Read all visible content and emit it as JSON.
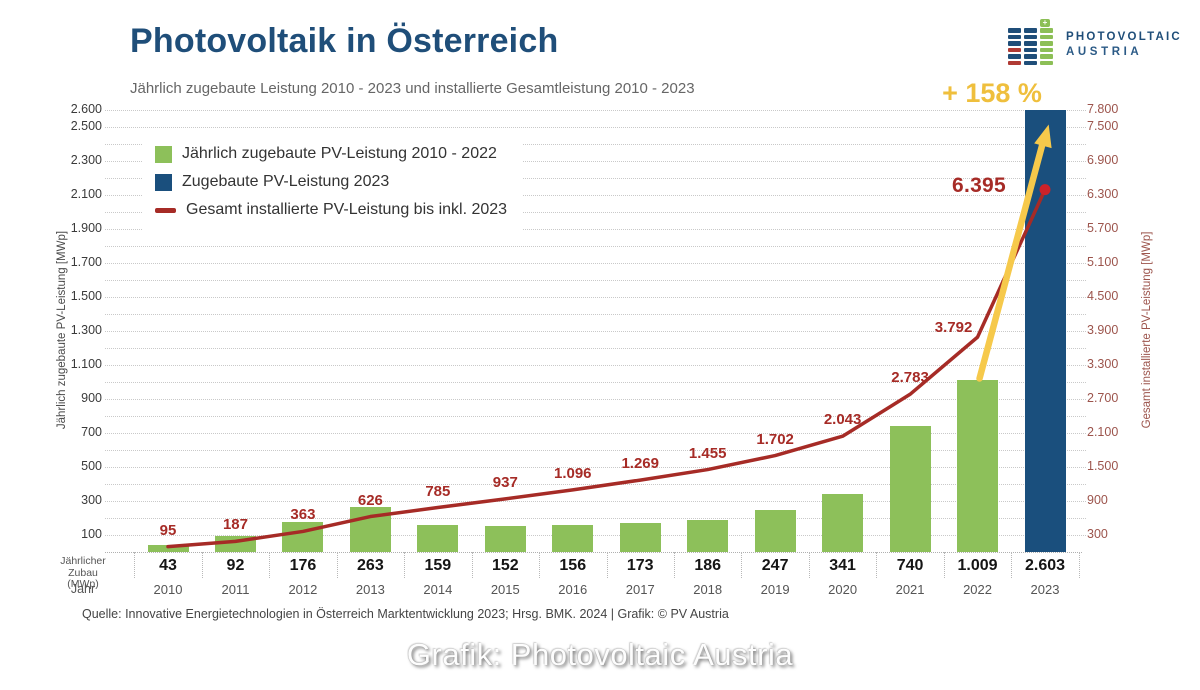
{
  "header": {
    "title": "Photovoltaik in Österreich",
    "subtitle": "Jährlich zugebaute Leistung 2010 - 2023 und installierte Gesamtleistung 2010 - 2023"
  },
  "logo": {
    "line1": "PHOTOVOLTAIC",
    "line2": "AUSTRIA"
  },
  "legend": [
    {
      "label": "Jährlich zugebaute PV-Leistung 2010 - 2022",
      "swatch": "green-square",
      "color": "#8DC05A"
    },
    {
      "label": "Zugebaute PV-Leistung 2023",
      "swatch": "blue-square",
      "color": "#1A4F7D"
    },
    {
      "label": "Gesamt installierte PV-Leistung bis inkl. 2023",
      "swatch": "red-dash",
      "color": "#A62B26"
    }
  ],
  "table": {
    "row1_label_line1": "Jährlicher",
    "row1_label_line2": "Zubau (MWp)",
    "row2_label": "Jahr"
  },
  "source": "Quelle: Innovative Energietechnologien in Österreich Marktentwicklung 2023; Hrsg. BMK. 2024 | Grafik: © PV Austria",
  "caption": "Grafik: Photovoltaic Austria",
  "chart_data": {
    "type": "bar",
    "subtype": "bar+line combo, dual y-axis",
    "categories": [
      "2010",
      "2011",
      "2012",
      "2013",
      "2014",
      "2015",
      "2016",
      "2017",
      "2018",
      "2019",
      "2020",
      "2021",
      "2022",
      "2023"
    ],
    "series": [
      {
        "name": "Jährlich zugebaute PV-Leistung 2010 - 2022",
        "type": "bar",
        "axis": "left",
        "values": [
          43,
          92,
          176,
          263,
          159,
          152,
          156,
          173,
          186,
          247,
          341,
          740,
          1009,
          null
        ]
      },
      {
        "name": "Zugebaute PV-Leistung 2023",
        "type": "bar",
        "axis": "left",
        "values": [
          null,
          null,
          null,
          null,
          null,
          null,
          null,
          null,
          null,
          null,
          null,
          null,
          null,
          2603
        ]
      },
      {
        "name": "Gesamt installierte PV-Leistung bis inkl. 2023",
        "type": "line",
        "axis": "right",
        "values": [
          95,
          187,
          363,
          626,
          785,
          937,
          1096,
          1269,
          1455,
          1702,
          2043,
          2783,
          3792,
          6395
        ]
      }
    ],
    "bar_value_labels": [
      "43",
      "92",
      "176",
      "263",
      "159",
      "152",
      "156",
      "173",
      "186",
      "247",
      "341",
      "740",
      "1.009",
      "2.603"
    ],
    "line_value_labels": [
      "95",
      "187",
      "363",
      "626",
      "785",
      "937",
      "1.096",
      "1.269",
      "1.455",
      "1.702",
      "2.043",
      "2.783",
      "3.792",
      "6.395"
    ],
    "left_axis": {
      "label": "Jährlich zugebaute PV-Leistung [MWp]",
      "min": 0,
      "max": 2600,
      "tick_labels": [
        "100",
        "300",
        "500",
        "700",
        "900",
        "1.100",
        "1.300",
        "1.500",
        "1.700",
        "1.900",
        "2.100",
        "2.300",
        "2.500",
        "2.600"
      ],
      "tick_values": [
        100,
        300,
        500,
        700,
        900,
        1100,
        1300,
        1500,
        1700,
        1900,
        2100,
        2300,
        2500,
        2600
      ]
    },
    "right_axis": {
      "label": "Gesamt installierte PV-Leistung [MWp]",
      "min": 0,
      "max": 7800,
      "tick_labels": [
        "300",
        "900",
        "1.500",
        "2.100",
        "2.700",
        "3.300",
        "3.900",
        "4.500",
        "5.100",
        "5.700",
        "6.300",
        "6.900",
        "7.500",
        "7.800"
      ],
      "tick_values": [
        300,
        900,
        1500,
        2100,
        2700,
        3300,
        3900,
        4500,
        5100,
        5700,
        6300,
        6900,
        7500,
        7800
      ]
    },
    "grid": "dotted horizontal every 100 (left axis)",
    "legend_position": "top-left inside plot",
    "annotations": {
      "growth_label": "+ 158 %",
      "final_total_label": "6.395"
    },
    "colors": {
      "bar_green": "#8DC05A",
      "bar_blue": "#1A4F7D",
      "line_red": "#A62B26",
      "line_end_dot": "#CC2229",
      "arrow_yellow": "#F6C94B",
      "growth_text": "#EFBF3D",
      "title_blue": "#1F4E79"
    }
  }
}
